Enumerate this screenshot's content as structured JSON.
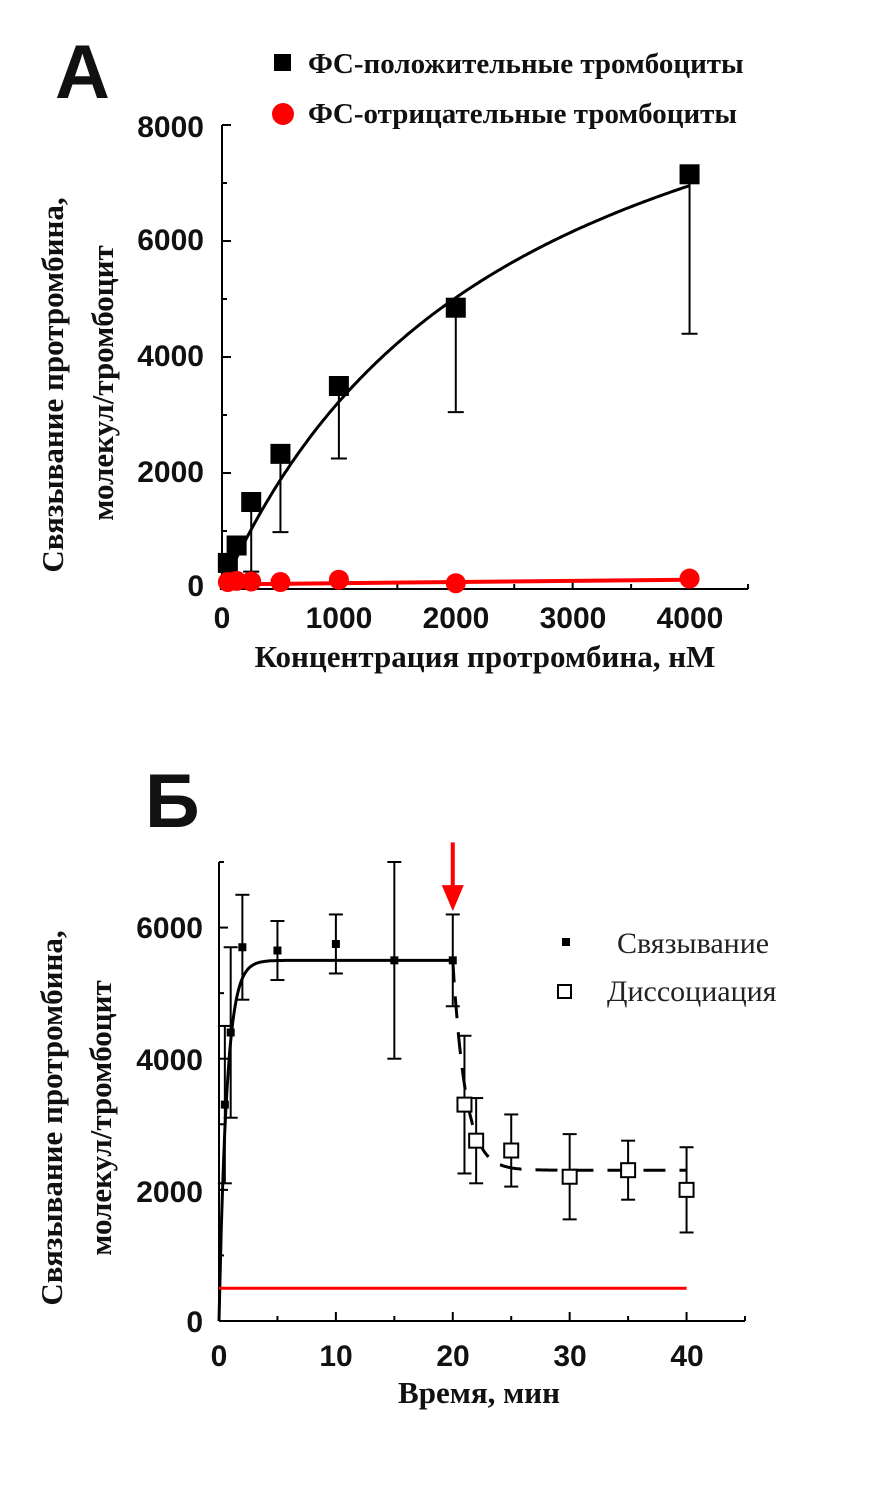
{
  "chart_data": [
    {
      "type": "scatter",
      "panel_label": "А",
      "xlabel": "Концентрация протромбина, нМ",
      "ylabel": "Связывание протромбина, молекул/тромбоцит",
      "xlim": [
        0,
        4500
      ],
      "ylim": [
        0,
        8000
      ],
      "xticks": [
        "0",
        "1000",
        "2000",
        "3000",
        "4000"
      ],
      "yticks": [
        "0",
        "2000",
        "4000",
        "6000",
        "8000"
      ],
      "legend_position": "top-right",
      "series": [
        {
          "name": "ФС-положительные тромбоциты",
          "marker": "square",
          "color": "#000000",
          "x": [
            50,
            125,
            250,
            500,
            1000,
            2000,
            4000
          ],
          "y": [
            450,
            750,
            1500,
            2330,
            3500,
            4850,
            7150
          ],
          "error_low": [
            450,
            750,
            1200,
            1350,
            1250,
            1800,
            2750
          ],
          "error_high": [
            0,
            0,
            0,
            0,
            0,
            0,
            0
          ]
        },
        {
          "name": "ФС-отрицательные тромбоциты",
          "marker": "circle",
          "color": "#ff0000",
          "x": [
            50,
            125,
            250,
            500,
            1000,
            2000,
            4000
          ],
          "y": [
            120,
            140,
            130,
            120,
            160,
            100,
            180
          ],
          "error_low": [
            0,
            0,
            0,
            0,
            0,
            0,
            0
          ],
          "error_high": [
            0,
            0,
            0,
            0,
            0,
            0,
            0
          ]
        }
      ],
      "fit_curves": [
        {
          "series": "ФС-положительные тромбоциты",
          "color": "#000000",
          "type": "hyperbola",
          "bmax": 11300,
          "kd": 2500
        },
        {
          "series": "ФС-отрицательные тромбоциты",
          "color": "#ff0000",
          "type": "linear",
          "x": [
            0,
            4000
          ],
          "y": [
            80,
            160
          ]
        }
      ]
    },
    {
      "type": "scatter",
      "panel_label": "Б",
      "xlabel": "Время, мин",
      "ylabel": "Связывание протромбина, молекул/тромбоцит",
      "xlim": [
        0,
        45
      ],
      "ylim": [
        0,
        7000
      ],
      "xticks": [
        "0",
        "10",
        "20",
        "30",
        "40"
      ],
      "yticks": [
        "0",
        "2000",
        "4000",
        "6000"
      ],
      "legend_position": "right",
      "series": [
        {
          "name": "Связывание",
          "marker": "small-filled-square",
          "color": "#000000",
          "x": [
            0.5,
            1,
            2,
            5,
            10,
            15,
            20
          ],
          "y": [
            3300,
            4400,
            5700,
            5650,
            5750,
            5500,
            5500
          ],
          "error": [
            1200,
            1300,
            800,
            450,
            450,
            1500,
            700
          ]
        },
        {
          "name": "Диссоциация",
          "marker": "open-square",
          "color": "#000000",
          "x": [
            21,
            22,
            25,
            30,
            35,
            40
          ],
          "y": [
            3300,
            2750,
            2600,
            2200,
            2300,
            2000
          ],
          "error": [
            1050,
            650,
            550,
            650,
            450,
            650
          ]
        }
      ],
      "fit_curves": [
        {
          "series": "Связывание",
          "color": "#000000",
          "style": "solid",
          "type": "association",
          "plateau": 5500,
          "rate": 1.5,
          "x_end": 20
        },
        {
          "series": "Диссоциация",
          "color": "#000000",
          "style": "dashed",
          "type": "dissociation",
          "start": 5500,
          "plateau": 2300,
          "rate": 0.9,
          "x_start": 20,
          "x_end": 40
        },
        {
          "series": "baseline",
          "color": "#ff0000",
          "style": "solid",
          "type": "linear",
          "x": [
            0,
            40
          ],
          "y": [
            500,
            500
          ]
        }
      ],
      "annotations": [
        {
          "type": "arrow",
          "color": "#ff0000",
          "x": 20,
          "y_from": 7300,
          "y_to": 6250
        }
      ]
    }
  ]
}
